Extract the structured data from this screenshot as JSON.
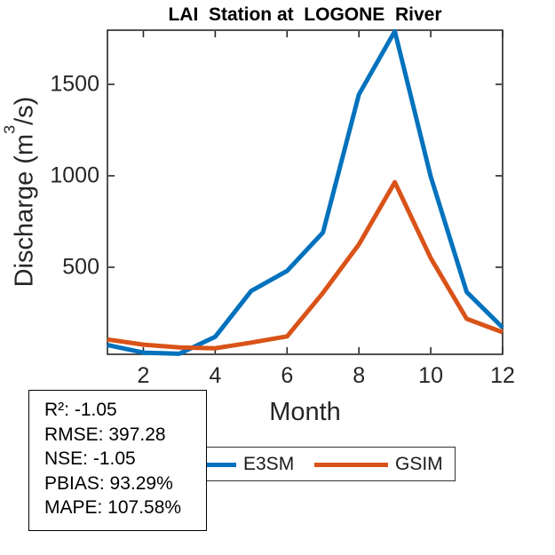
{
  "title": "LAI  Station at  LOGONE  River",
  "chart_data": {
    "type": "line",
    "x": [
      1,
      2,
      3,
      4,
      5,
      6,
      7,
      8,
      9,
      10,
      11,
      12
    ],
    "xlabel": "Month",
    "ylabel": "Discharge (m³/s)",
    "ylabel_rich": {
      "pre": "Discharge (m",
      "sup": "3",
      "post": "/s)"
    },
    "xlim": [
      1,
      12
    ],
    "ylim": [
      24,
      1796
    ],
    "x_ticks": [
      2,
      4,
      6,
      8,
      10,
      12
    ],
    "y_ticks": [
      500,
      1000,
      1500
    ],
    "grid": false,
    "box": true,
    "tick_direction": "in",
    "legend_position": "below plot, horizontal",
    "series": [
      {
        "name": "E3SM",
        "color": "#0072BD",
        "values": [
          75,
          33,
          27,
          120,
          370,
          480,
          690,
          1445,
          1790,
          995,
          365,
          170
        ]
      },
      {
        "name": "GSIM",
        "color": "#D95319",
        "values": [
          105,
          77,
          62,
          57,
          88,
          122,
          360,
          625,
          965,
          550,
          218,
          145
        ]
      }
    ]
  },
  "stats_box": {
    "lines": [
      "R²: -1.05",
      "RMSE: 397.28",
      "NSE: -1.05",
      "PBIAS: 93.29%",
      "MAPE: 107.58%"
    ]
  },
  "legend": {
    "entries": [
      {
        "label": "E3SM",
        "color": "#0072BD"
      },
      {
        "label": "GSIM",
        "color": "#D95319"
      }
    ]
  },
  "colors": {
    "axis": "#262626",
    "background": "#ffffff",
    "series_blue": "#0072BD",
    "series_orange": "#D95319"
  }
}
